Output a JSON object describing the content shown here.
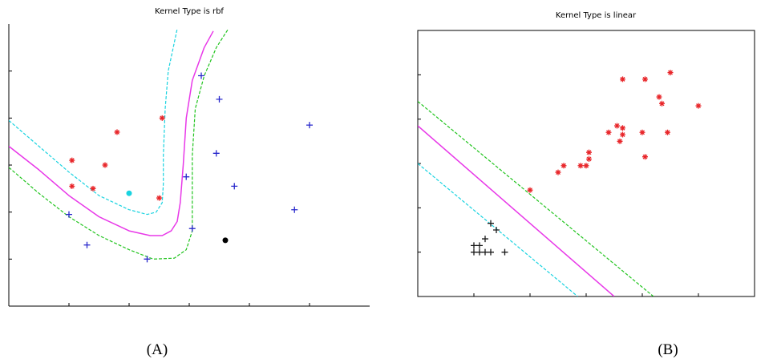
{
  "chart_data": [
    {
      "type": "scatter",
      "panel": "A",
      "caption": "(A)",
      "title": "Kernel Type is rbf",
      "xlabel": "",
      "ylabel": "",
      "xlim": [
        0,
        6
      ],
      "ylim": [
        0,
        6
      ],
      "grid": false,
      "series": [
        {
          "marker": "star",
          "color": "#e8262a",
          "points": [
            [
              1.05,
              3.1
            ],
            [
              1.05,
              2.55
            ],
            [
              1.4,
              2.5
            ],
            [
              1.6,
              3.0
            ],
            [
              1.8,
              3.7
            ],
            [
              2.5,
              2.3
            ],
            [
              2.55,
              4.0
            ]
          ]
        },
        {
          "marker": "plus",
          "color": "#2828cc",
          "points": [
            [
              1.0,
              1.95
            ],
            [
              1.3,
              1.3
            ],
            [
              2.3,
              1.0
            ],
            [
              2.95,
              2.75
            ],
            [
              3.05,
              1.65
            ],
            [
              3.2,
              4.9
            ],
            [
              3.45,
              3.25
            ],
            [
              3.5,
              4.4
            ],
            [
              3.75,
              2.55
            ],
            [
              4.75,
              2.05
            ],
            [
              5.0,
              3.85
            ]
          ]
        },
        {
          "marker": "dot",
          "color": "#19d3e0",
          "points": [
            [
              2.0,
              2.4
            ]
          ]
        },
        {
          "marker": "dot",
          "color": "#000000",
          "points": [
            [
              3.6,
              1.4
            ]
          ]
        }
      ],
      "curves": [
        {
          "role": "decision boundary",
          "style": "solid",
          "color": "#e838e8",
          "points": [
            [
              0,
              3.4
            ],
            [
              0.5,
              2.9
            ],
            [
              1.0,
              2.35
            ],
            [
              1.5,
              1.9
            ],
            [
              2.0,
              1.6
            ],
            [
              2.35,
              1.5
            ],
            [
              2.55,
              1.5
            ],
            [
              2.7,
              1.6
            ],
            [
              2.8,
              1.8
            ],
            [
              2.85,
              2.2
            ],
            [
              2.9,
              3.0
            ],
            [
              2.95,
              4.0
            ],
            [
              3.05,
              4.8
            ],
            [
              3.25,
              5.5
            ],
            [
              3.4,
              5.85
            ]
          ]
        },
        {
          "role": "margin",
          "style": "dashed",
          "color": "#19d3e0",
          "points": [
            [
              0,
              3.95
            ],
            [
              0.5,
              3.4
            ],
            [
              1.0,
              2.85
            ],
            [
              1.5,
              2.35
            ],
            [
              2.0,
              2.05
            ],
            [
              2.3,
              1.95
            ],
            [
              2.45,
              2.0
            ],
            [
              2.55,
              2.2
            ],
            [
              2.57,
              2.6
            ],
            [
              2.57,
              3.2
            ],
            [
              2.6,
              4.2
            ],
            [
              2.65,
              5.0
            ],
            [
              2.75,
              5.6
            ],
            [
              2.8,
              5.9
            ]
          ]
        },
        {
          "role": "margin",
          "style": "dashed",
          "color": "#21c41e",
          "points": [
            [
              0,
              2.95
            ],
            [
              0.5,
              2.4
            ],
            [
              1.0,
              1.9
            ],
            [
              1.5,
              1.5
            ],
            [
              2.0,
              1.2
            ],
            [
              2.4,
              1.0
            ],
            [
              2.75,
              1.02
            ],
            [
              2.95,
              1.2
            ],
            [
              3.05,
              1.6
            ],
            [
              3.05,
              2.3
            ],
            [
              3.05,
              3.2
            ],
            [
              3.1,
              4.2
            ],
            [
              3.25,
              4.9
            ],
            [
              3.45,
              5.5
            ],
            [
              3.65,
              5.9
            ]
          ]
        }
      ]
    },
    {
      "type": "scatter",
      "panel": "B",
      "caption": "(B)",
      "title": "Kernel Type is linear",
      "xlabel": "",
      "ylabel": "",
      "xlim": [
        0,
        6
      ],
      "ylim": [
        0,
        6
      ],
      "grid": false,
      "series": [
        {
          "marker": "star",
          "color": "#e8262a",
          "points": [
            [
              2.0,
              2.4
            ],
            [
              2.5,
              2.8
            ],
            [
              2.6,
              2.95
            ],
            [
              2.9,
              2.95
            ],
            [
              3.0,
              2.95
            ],
            [
              3.05,
              3.1
            ],
            [
              3.05,
              3.25
            ],
            [
              3.4,
              3.7
            ],
            [
              3.55,
              3.85
            ],
            [
              3.6,
              3.5
            ],
            [
              3.65,
              3.65
            ],
            [
              3.65,
              3.8
            ],
            [
              3.65,
              4.9
            ],
            [
              4.0,
              3.7
            ],
            [
              4.05,
              3.15
            ],
            [
              4.05,
              4.9
            ],
            [
              4.3,
              4.5
            ],
            [
              4.35,
              4.35
            ],
            [
              4.45,
              3.7
            ],
            [
              4.5,
              5.05
            ],
            [
              5.0,
              4.3
            ]
          ]
        },
        {
          "marker": "plus",
          "color": "#1a1a1a",
          "points": [
            [
              1.0,
              1.0
            ],
            [
              1.0,
              1.15
            ],
            [
              1.1,
              1.0
            ],
            [
              1.1,
              1.15
            ],
            [
              1.2,
              1.0
            ],
            [
              1.2,
              1.3
            ],
            [
              1.3,
              1.0
            ],
            [
              1.3,
              1.65
            ],
            [
              1.4,
              1.5
            ],
            [
              1.55,
              1.0
            ]
          ]
        }
      ],
      "curves": [
        {
          "role": "decision boundary",
          "style": "solid",
          "color": "#e838e8",
          "points": [
            [
              0,
              3.85
            ],
            [
              3.5,
              0
            ]
          ]
        },
        {
          "role": "margin",
          "style": "dashed",
          "color": "#21c41e",
          "points": [
            [
              0,
              4.4
            ],
            [
              4.2,
              0
            ]
          ]
        },
        {
          "role": "margin",
          "style": "dashed",
          "color": "#19d3e0",
          "points": [
            [
              0,
              3.0
            ],
            [
              2.85,
              0
            ]
          ]
        }
      ]
    }
  ]
}
